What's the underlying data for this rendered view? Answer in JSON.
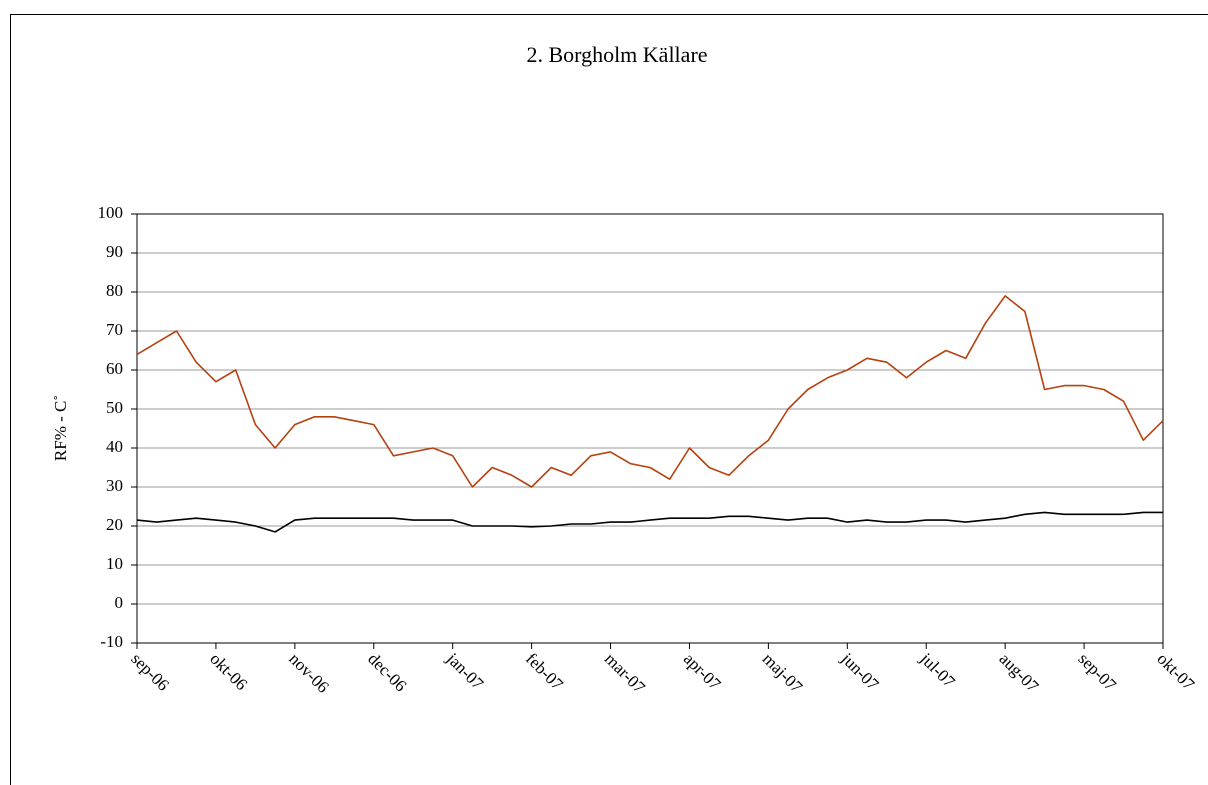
{
  "chart_data": {
    "type": "line",
    "title": "2. Borgholm Källare",
    "y_label": "RF% - C˚",
    "categories": [
      "sep-06",
      null,
      null,
      null,
      "okt-06",
      null,
      null,
      null,
      "nov-06",
      null,
      null,
      null,
      "dec-06",
      null,
      null,
      null,
      "jan-07",
      null,
      null,
      null,
      "feb-07",
      null,
      null,
      null,
      "mar-07",
      null,
      null,
      null,
      "apr-07",
      null,
      null,
      null,
      "maj-07",
      null,
      null,
      null,
      "jun-07",
      null,
      null,
      null,
      "jul-07",
      null,
      null,
      null,
      "aug-07",
      null,
      null,
      null,
      "sep-07",
      null,
      null,
      null,
      "okt-07"
    ],
    "series": [
      {
        "color": "#b5420f",
        "values": [
          64,
          67,
          70,
          62,
          57,
          60,
          46,
          40,
          46,
          48,
          48,
          47,
          46,
          38,
          39,
          40,
          38,
          30,
          35,
          33,
          30,
          35,
          33,
          38,
          39,
          36,
          35,
          32,
          40,
          35,
          33,
          38,
          42,
          50,
          55,
          58,
          60,
          63,
          62,
          58,
          62,
          65,
          63,
          72,
          79,
          75,
          55,
          56,
          56,
          55,
          52,
          42,
          47
        ]
      },
      {
        "color": "#000000",
        "values": [
          21.5,
          21,
          21.5,
          22,
          21.5,
          21,
          20,
          18.5,
          21.5,
          22,
          22,
          22,
          22,
          22,
          21.5,
          21.5,
          21.5,
          20,
          20,
          20,
          19.8,
          20,
          20.5,
          20.5,
          21,
          21,
          21.5,
          22,
          22,
          22,
          22.5,
          22.5,
          22,
          21.5,
          22,
          22,
          21,
          21.5,
          21,
          21,
          21.5,
          21.5,
          21,
          21.5,
          22,
          23,
          23.5,
          23,
          23,
          23,
          23,
          23.5,
          23.5
        ]
      }
    ],
    "ylim": [
      -10,
      100
    ],
    "yticks": [
      -10,
      0,
      10,
      20,
      30,
      40,
      50,
      60,
      70,
      80,
      90,
      100
    ],
    "grid": true
  }
}
